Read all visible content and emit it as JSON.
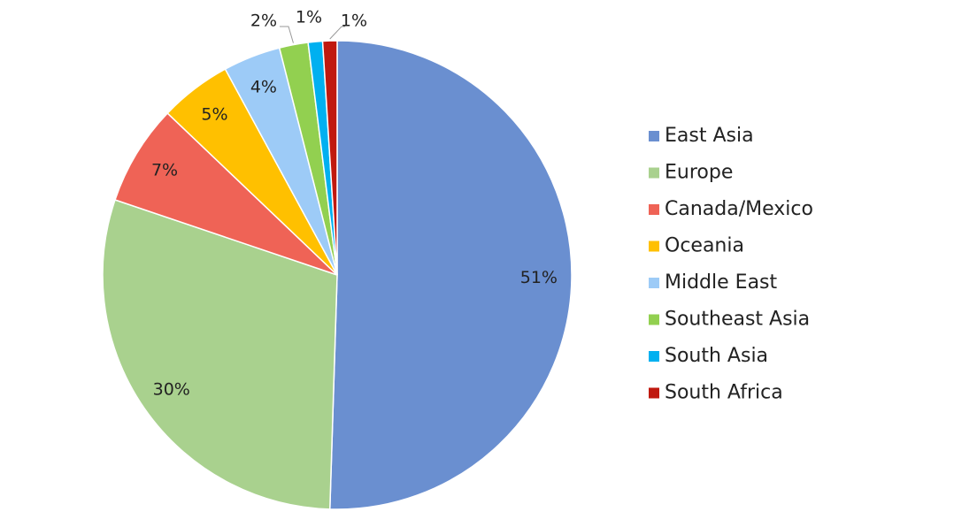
{
  "chart_data": {
    "type": "pie",
    "categories": [
      "East Asia",
      "Europe",
      "Canada/Mexico",
      "Oceania",
      "Middle East",
      "Southeast Asia",
      "South Asia",
      "South Africa"
    ],
    "values": [
      51,
      30,
      7,
      5,
      4,
      2,
      1,
      1
    ],
    "value_labels": [
      "51%",
      "30%",
      "7%",
      "5%",
      "4%",
      "2%",
      "1%",
      "1%"
    ],
    "colors": [
      "#6a8fd0",
      "#a9d18e",
      "#ef6356",
      "#ffc000",
      "#9dcbf7",
      "#92d050",
      "#00b0f0",
      "#c0190f"
    ],
    "legend": "right"
  }
}
